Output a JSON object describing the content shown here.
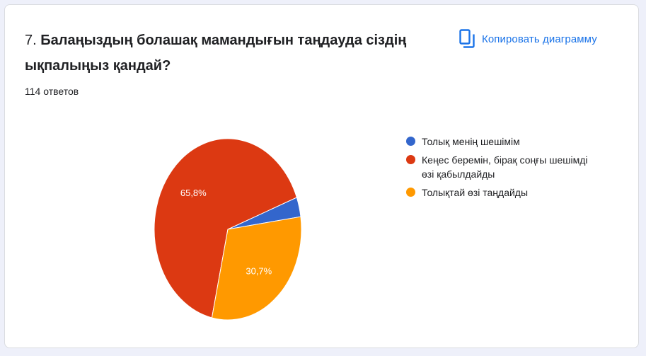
{
  "question": {
    "number": "7.",
    "text": "Балаңыздың болашақ мамандығын таңдауда сіздің ықпалыңыз қандай?"
  },
  "response_count": "114 ответов",
  "copy_button": {
    "label": "Копировать диаграмму",
    "icon": "copy-icon"
  },
  "colors": {
    "accent": "#1a73e8",
    "series": [
      "#3366cc",
      "#dc3912",
      "#ff9900"
    ]
  },
  "chart_data": {
    "type": "pie",
    "legend_position": "right",
    "slices": [
      {
        "name": "Толық менің шешімім",
        "value": 3.5,
        "label": "",
        "color": "#3366cc"
      },
      {
        "name": "Кеңес беремін, бірақ соңғы шешімді өзі қабылдайды",
        "value": 65.8,
        "label": "65,8%",
        "color": "#dc3912"
      },
      {
        "name": "Толықтай өзі таңдайды",
        "value": 30.7,
        "label": "30,7%",
        "color": "#ff9900"
      }
    ]
  }
}
